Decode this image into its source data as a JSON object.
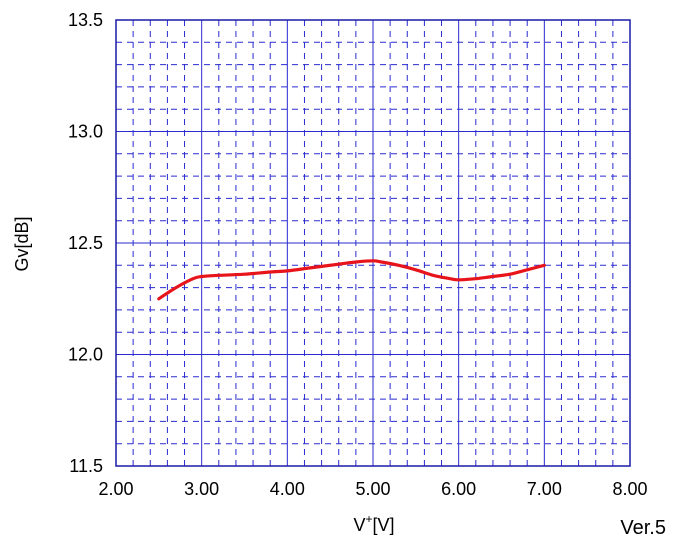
{
  "chart_data": {
    "type": "line",
    "title": "",
    "xlabel": {
      "base": "V",
      "superscript": "+",
      "unit": "[V]"
    },
    "ylabel": "Gv[dB]",
    "xlim": [
      2.0,
      8.0
    ],
    "ylim": [
      11.5,
      13.5
    ],
    "x_ticks": [
      2.0,
      3.0,
      4.0,
      5.0,
      6.0,
      7.0,
      8.0
    ],
    "x_tick_labels": [
      "2.00",
      "3.00",
      "4.00",
      "5.00",
      "6.00",
      "7.00",
      "8.00"
    ],
    "y_ticks": [
      11.5,
      12.0,
      12.5,
      13.0,
      13.5
    ],
    "y_tick_labels": [
      "11.5",
      "12.0",
      "12.5",
      "13.0",
      "13.5"
    ],
    "minor_divisions": {
      "x": 5,
      "y": 5
    },
    "grid": true,
    "series": [
      {
        "color": "#e8141b",
        "x": [
          2.5,
          2.7,
          2.9,
          3.0,
          3.2,
          3.5,
          3.8,
          4.0,
          4.3,
          4.6,
          4.8,
          5.0,
          5.1,
          5.3,
          5.5,
          5.7,
          5.9,
          6.0,
          6.2,
          6.4,
          6.6,
          6.8,
          7.0
        ],
        "y": [
          12.25,
          12.3,
          12.34,
          12.35,
          12.355,
          12.36,
          12.37,
          12.375,
          12.39,
          12.405,
          12.415,
          12.42,
          12.415,
          12.4,
          12.38,
          12.355,
          12.34,
          12.335,
          12.34,
          12.35,
          12.36,
          12.38,
          12.4
        ]
      }
    ]
  },
  "footer": {
    "version": "Ver.5"
  },
  "colors": {
    "grid": "#2b2bd0",
    "frame": "#1a1aa8",
    "series": "#e8141b"
  }
}
